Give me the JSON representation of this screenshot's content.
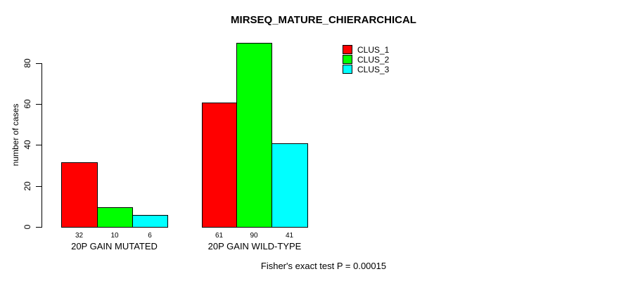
{
  "chart_data": {
    "type": "bar",
    "title": "MIRSEQ_MATURE_CHIERARCHICAL",
    "ylabel": "number of cases",
    "xlabel": "",
    "categories": [
      "20P GAIN MUTATED",
      "20P GAIN WILD-TYPE"
    ],
    "series": [
      {
        "name": "CLUS_1",
        "color": "#ff0000",
        "values": [
          32,
          61
        ]
      },
      {
        "name": "CLUS_2",
        "color": "#00ff00",
        "values": [
          10,
          90
        ]
      },
      {
        "name": "CLUS_3",
        "color": "#00ffff",
        "values": [
          6,
          41
        ]
      }
    ],
    "yticks": [
      0,
      20,
      40,
      60,
      80
    ],
    "ylim": [
      0,
      90
    ],
    "grid": false,
    "bar_value_labels_shown": true,
    "legend_position": "top-right",
    "annotation": "Fisher's exact test P = 0.00015",
    "colors": {
      "background": "#ffffff",
      "text": "#000000",
      "bar_border": "#000000",
      "axis": "#000000"
    }
  }
}
